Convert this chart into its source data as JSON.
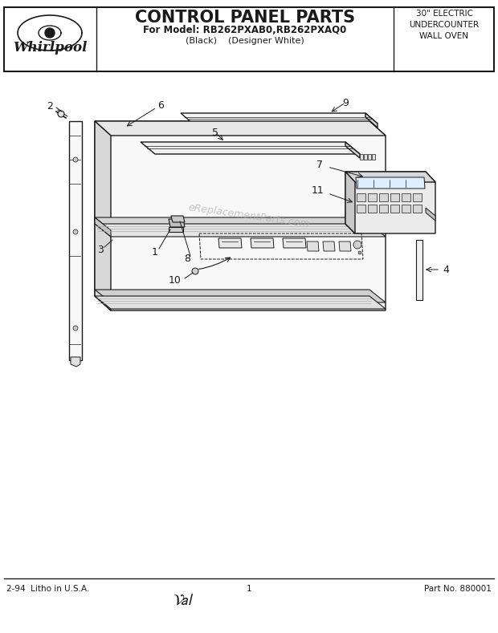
{
  "title": "CONTROL PANEL PARTS",
  "subtitle_model": "For Model: RB262PXAB0,RB262PXAQ0",
  "subtitle_colors": "(Black)    (Designer White)",
  "top_right_text": "30\" ELECTRIC\nUNDERCOUNTER\nWALL OVEN",
  "bottom_left": "2-94  Litho in U.S.A.",
  "bottom_center": "1",
  "bottom_right": "Part No. 880001",
  "watermark": "eReplacementParts.com",
  "bg_color": "#ffffff",
  "line_color": "#1a1a1a",
  "label_fontsize": 9,
  "footer_fontsize": 7.5,
  "title_fontsize": 15
}
